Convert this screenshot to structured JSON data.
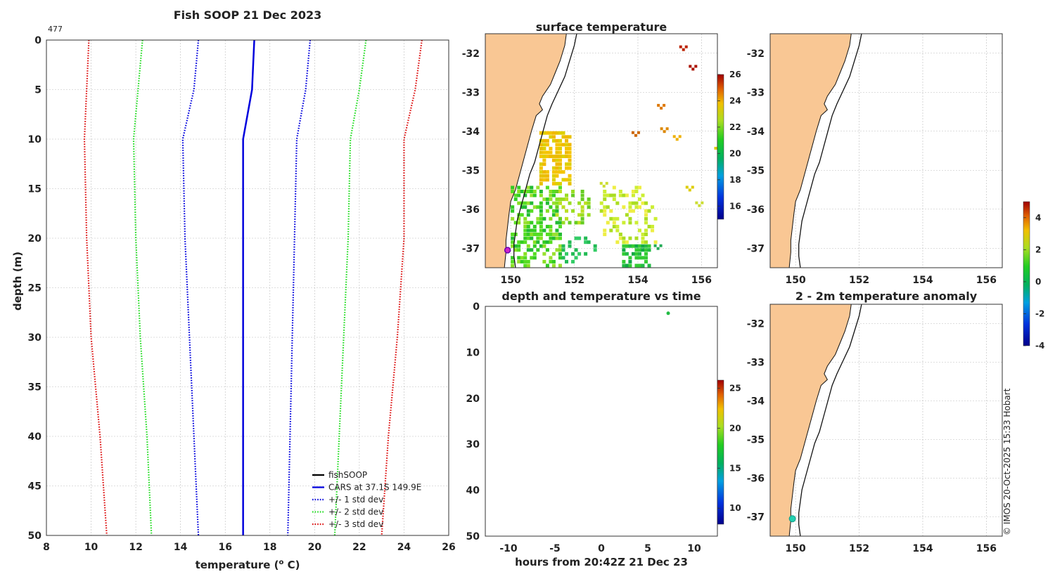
{
  "colors": {
    "land": "#f9c794",
    "grid": "#bdbdbd",
    "cars": "#0000dd",
    "std1": "#0000dd",
    "std2": "#22dd22",
    "std3": "#dd1111",
    "coast": "#111111",
    "marker": "#cc22cc",
    "anom_marker": "#22d0b0"
  },
  "credit": "© IMOS 20-Oct-2025 15:33 Hobart",
  "profile": {
    "title": "Fish SOOP 21 Dec 2023",
    "id_label": "477",
    "xlabel": "temperature (",
    "xlabel_sup": "o",
    "xlabel_end": " C)",
    "ylabel": "depth (m)",
    "xlim": [
      8,
      26
    ],
    "ylim": [
      0,
      50
    ],
    "xticks": [
      "8",
      "10",
      "12",
      "14",
      "16",
      "18",
      "20",
      "22",
      "24",
      "26"
    ],
    "yticks": [
      "0",
      "5",
      "10",
      "15",
      "20",
      "25",
      "30",
      "35",
      "40",
      "45",
      "50"
    ],
    "legend": [
      {
        "label": "fishSOOP",
        "style": "solid",
        "color": "#000000"
      },
      {
        "label": "CARS at 37.1S 149.9E",
        "style": "solid",
        "color": "#0000dd"
      },
      {
        "label": "+/- 1 std dev",
        "style": "dotted",
        "color": "#0000dd"
      },
      {
        "label": "+/- 2 std dev",
        "style": "dotted",
        "color": "#22dd22"
      },
      {
        "label": "+/- 3 std dev",
        "style": "dotted",
        "color": "#dd1111"
      }
    ]
  },
  "chart_data": [
    {
      "type": "line",
      "title": "Fish SOOP 21 Dec 2023",
      "xlabel": "temperature (o C)",
      "ylabel": "depth (m)",
      "xlim": [
        8,
        26
      ],
      "ylim": [
        0,
        50
      ],
      "depth": [
        0,
        5,
        10,
        20,
        30,
        40,
        50
      ],
      "series": [
        {
          "name": "CARS at 37.1S 149.9E",
          "style": "solid",
          "values": [
            17.3,
            17.2,
            16.8,
            16.8,
            16.8,
            16.8,
            16.8
          ]
        },
        {
          "name": "-1 std dev",
          "style": "dotted",
          "values": [
            14.8,
            14.6,
            14.1,
            14.2,
            14.4,
            14.6,
            14.8
          ]
        },
        {
          "name": "+1 std dev",
          "style": "dotted",
          "values": [
            19.8,
            19.6,
            19.2,
            19.1,
            19.0,
            18.9,
            18.8
          ]
        },
        {
          "name": "-2 std dev",
          "style": "dotted",
          "values": [
            12.3,
            12.1,
            11.9,
            12.0,
            12.2,
            12.5,
            12.7
          ]
        },
        {
          "name": "+2 std dev",
          "style": "dotted",
          "values": [
            22.3,
            22.0,
            21.6,
            21.5,
            21.3,
            21.1,
            20.9
          ]
        },
        {
          "name": "-3 std dev",
          "style": "dotted",
          "values": [
            9.9,
            9.8,
            9.7,
            9.8,
            10.0,
            10.4,
            10.7
          ]
        },
        {
          "name": "+3 std dev",
          "style": "dotted",
          "values": [
            24.8,
            24.5,
            24.0,
            24.0,
            23.7,
            23.3,
            23.0
          ]
        }
      ]
    },
    {
      "type": "heatmap",
      "title": "surface temperature",
      "xlim": [
        149.2,
        156.5
      ],
      "ylim": [
        -37.5,
        -31.5
      ],
      "xticks": [
        "150",
        "152",
        "154",
        "156"
      ],
      "yticks": [
        "-32",
        "-33",
        "-34",
        "-35",
        "-36",
        "-37"
      ],
      "colorbar": {
        "range": [
          15,
          26
        ],
        "ticks": [
          "26",
          "24",
          "22",
          "20",
          "18",
          "16"
        ]
      },
      "marker": {
        "lon": 149.9,
        "lat": -37.05
      }
    },
    {
      "type": "heatmap",
      "title": "",
      "xlim": [
        149.2,
        156.5
      ],
      "ylim": [
        -37.5,
        -31.5
      ],
      "xticks": [
        "150",
        "152",
        "154",
        "156"
      ],
      "yticks": [
        "-32",
        "-33",
        "-34",
        "-35",
        "-36",
        "-37"
      ]
    },
    {
      "type": "scatter",
      "title": "depth and temperature vs time",
      "xlabel": "hours from 20:42Z 21 Dec 23",
      "ylabel": "",
      "xlim": [
        -12.5,
        12.5
      ],
      "ylim": [
        0,
        50
      ],
      "xticks": [
        "-10",
        "-5",
        "0",
        "5",
        "10"
      ],
      "yticks": [
        "0",
        "10",
        "20",
        "30",
        "40",
        "50"
      ],
      "points": [
        {
          "x": 7.2,
          "y": 1.5,
          "value": 16
        }
      ],
      "colorbar": {
        "range": [
          8,
          26
        ],
        "ticks": [
          "25",
          "20",
          "15",
          "10"
        ]
      }
    },
    {
      "type": "heatmap",
      "title": "2 - 2m temperature anomaly",
      "xlim": [
        149.2,
        156.5
      ],
      "ylim": [
        -37.5,
        -31.5
      ],
      "xticks": [
        "150",
        "152",
        "154",
        "156"
      ],
      "yticks": [
        "-32",
        "-33",
        "-34",
        "-35",
        "-36",
        "-37"
      ],
      "marker": {
        "lon": 149.9,
        "lat": -37.05
      },
      "colorbar": {
        "range": [
          -4,
          5
        ],
        "ticks": [
          "4",
          "2",
          "0",
          "-2",
          "-4"
        ]
      }
    }
  ]
}
